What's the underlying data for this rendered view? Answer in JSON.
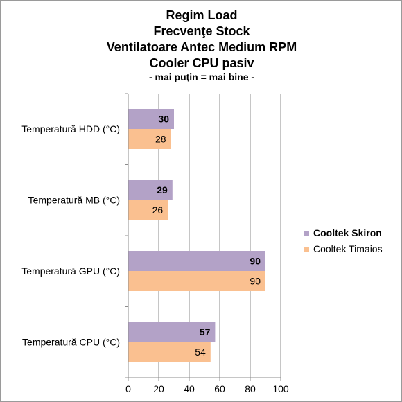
{
  "chart_data": {
    "type": "bar",
    "orientation": "horizontal",
    "title_lines": [
      "Regim Load",
      "Frecvenţe Stock",
      "Ventilatoare Antec Medium RPM",
      "Cooler CPU pasiv"
    ],
    "subtitle": "- mai puţin = mai bine -",
    "categories": [
      "Temperatură  HDD (°C)",
      "Temperatură  MB (°C)",
      "Temperatură  GPU (°C)",
      "Temperatură  CPU (°C)"
    ],
    "series": [
      {
        "name": "Cooltek Skiron",
        "values": [
          30,
          29,
          90,
          57
        ],
        "color": "#b3a2c7",
        "label_bold": true
      },
      {
        "name": "Cooltek Timaios",
        "values": [
          28,
          26,
          90,
          54
        ],
        "color": "#fac090",
        "label_bold": false
      }
    ],
    "xlim": [
      0,
      100
    ],
    "x_ticks": [
      "0",
      "20",
      "40",
      "60",
      "80",
      "100"
    ],
    "grid": true,
    "legend_position": "right"
  }
}
